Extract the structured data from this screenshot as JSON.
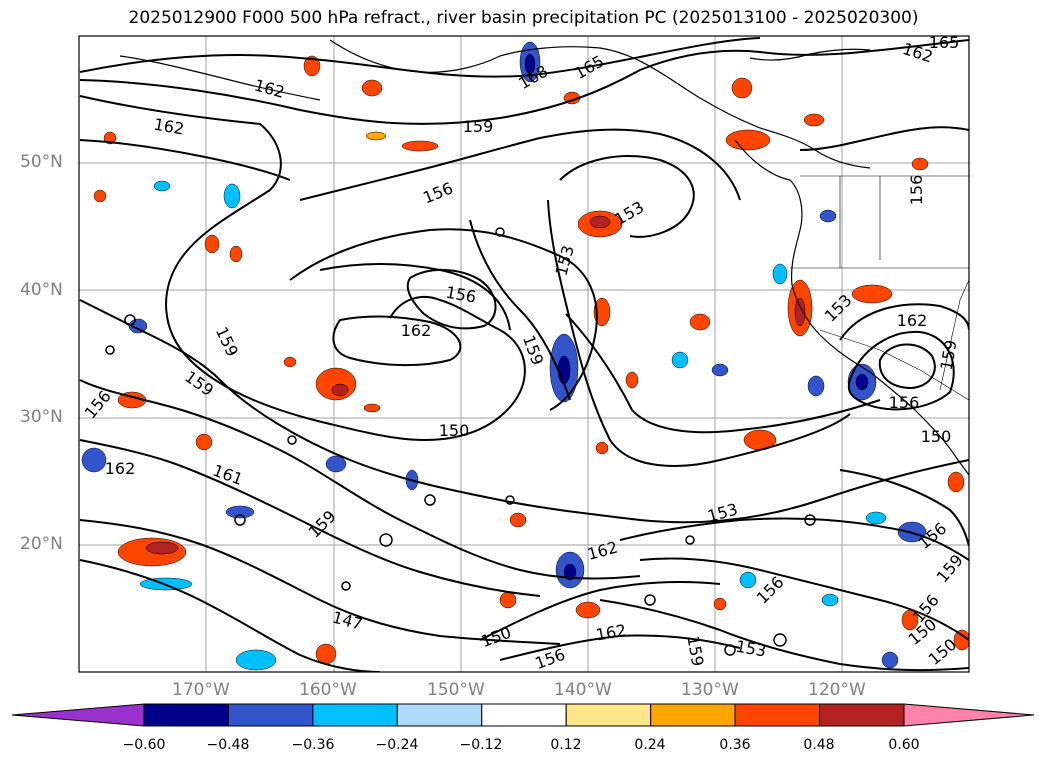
{
  "title": "2025012900 F000 500 hPa refract., river basin precipitation PC (2025013100 - 2025020300)",
  "map": {
    "projection": "PlateCarree",
    "lon_range": [
      -180,
      -110
    ],
    "lat_range": [
      10,
      60
    ],
    "gridlines": true,
    "lat_labels": [
      "50°N",
      "40°N",
      "30°N",
      "20°N"
    ],
    "lon_labels": [
      "170°W",
      "160°W",
      "150°W",
      "140°W",
      "130°W",
      "120°W"
    ],
    "contour_field": "500 hPa refractivity",
    "contour_labels": [
      "165",
      "162",
      "168",
      "165",
      "162",
      "162",
      "159",
      "156",
      "153",
      "153",
      "156",
      "162",
      "159",
      "159",
      "159",
      "156",
      "162",
      "150",
      "161",
      "159",
      "162",
      "153",
      "153",
      "162",
      "156",
      "159",
      "150",
      "147",
      "150",
      "162",
      "156",
      "159",
      "156",
      "150",
      "156",
      "159",
      "156",
      "156",
      "153",
      "150"
    ],
    "shaded_field": "river basin precipitation PC"
  },
  "colorbar": {
    "extend": "both",
    "ticks": [
      "−0.60",
      "−0.48",
      "−0.36",
      "−0.24",
      "−0.12",
      "0.12",
      "0.24",
      "0.36",
      "0.48",
      "0.60"
    ],
    "colors": {
      "under": "#9932cc",
      "bins": [
        "#00008b",
        "#3355cc",
        "#00bfff",
        "#add8f8",
        "#ffffff",
        "#fde68a",
        "#ffa500",
        "#ff4500",
        "#b22222"
      ],
      "over": "#ff82ab"
    }
  }
}
